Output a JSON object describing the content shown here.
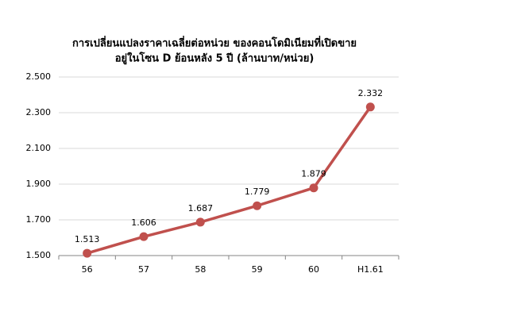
{
  "chart_data": {
    "type": "line",
    "title": [
      "การเปลี่ยนแปลงราคาเฉลี่ยต่อหน่วย ของคอนโดมิเนียมที่เปิดขาย",
      "อยู่ในโซน D ย้อนหลัง 5 ปี (ล้านบาท/หน่วย)"
    ],
    "categories": [
      "56",
      "57",
      "58",
      "59",
      "60",
      "H1.61"
    ],
    "series": [
      {
        "name": "ราคาเฉลี่ยต่อหน่วย",
        "color": "#c0504d",
        "values": [
          1.513,
          1.606,
          1.687,
          1.779,
          1.879,
          2.332
        ]
      }
    ],
    "ylim": [
      1.5,
      2.5
    ],
    "yticks": [
      {
        "value": 1.5,
        "label": "1.500"
      },
      {
        "value": 1.7,
        "label": "1.700"
      },
      {
        "value": 1.9,
        "label": "1.900"
      },
      {
        "value": 2.1,
        "label": "2.100"
      },
      {
        "value": 2.3,
        "label": "2.300"
      },
      {
        "value": 2.5,
        "label": "2.500"
      }
    ],
    "grid": true
  }
}
